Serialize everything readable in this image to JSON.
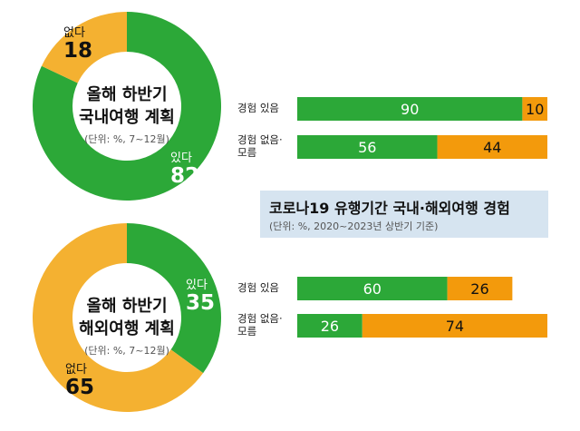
{
  "colors": {
    "green": "#2ca838",
    "yellow": "#f4b131",
    "orange": "#f39a0c",
    "white": "#ffffff"
  },
  "chart_data": [
    {
      "type": "pie",
      "title_line1": "올해 하반기",
      "title_line2": "국내여행 계획",
      "unit_note": "(단위: %, 7~12월)",
      "slices": [
        {
          "label": "있다",
          "value": 82
        },
        {
          "label": "없다",
          "value": 18
        }
      ]
    },
    {
      "type": "pie",
      "title_line1": "올해 하반기",
      "title_line2": "해외여행 계획",
      "unit_note": "(단위: %, 7~12월)",
      "slices": [
        {
          "label": "있다",
          "value": 35
        },
        {
          "label": "없다",
          "value": 65
        }
      ]
    },
    {
      "type": "bar",
      "stacked": true,
      "orientation": "horizontal",
      "title": "코로나19 유행기간 국내·해외여행 경험",
      "subtitle": "(단위: %, 2020~2023년 상반기 기준)",
      "groups": [
        {
          "categories": [
            "경험 있음",
            "경험 없음·\n모름"
          ],
          "rows": [
            {
              "category": "경험 있음",
              "values": [
                90,
                10
              ]
            },
            {
              "category": "경험 없음·\n모름",
              "values": [
                56,
                44
              ]
            }
          ]
        },
        {
          "categories": [
            "경험 있음",
            "경험 없음·\n모름"
          ],
          "rows": [
            {
              "category": "경험 있음",
              "values": [
                60,
                26
              ]
            },
            {
              "category": "경험 없음·\n모름",
              "values": [
                26,
                74
              ]
            }
          ]
        }
      ]
    }
  ]
}
